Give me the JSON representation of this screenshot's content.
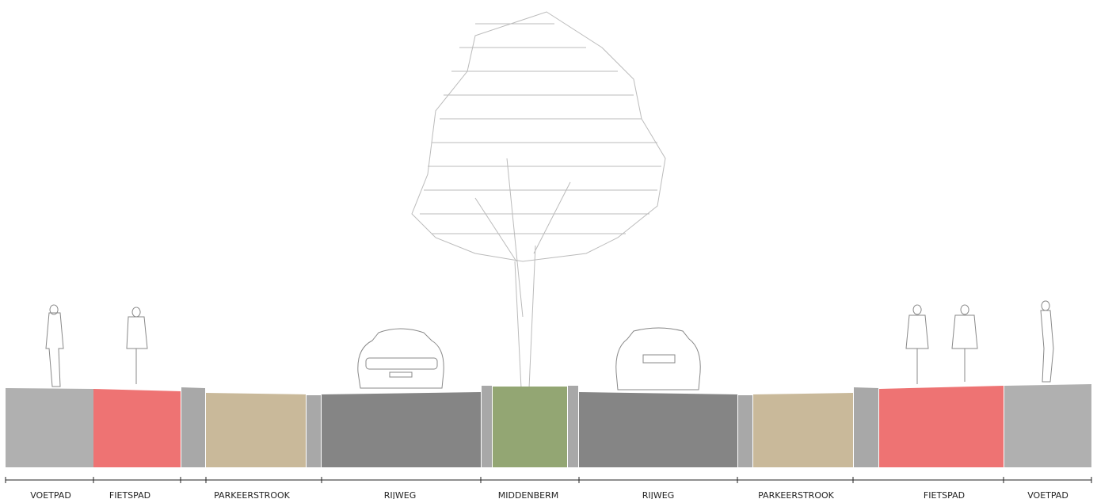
{
  "segments": [
    {
      "label": "VOETPAD"
    },
    {
      "label": "FIETSPAD"
    },
    {
      "label": "PARKEERSTROOK"
    },
    {
      "label": "RIJWEG"
    },
    {
      "label": "MIDDENBERM"
    },
    {
      "label": "RIJWEG"
    },
    {
      "label": "PARKEERSTROOK"
    },
    {
      "label": "FIETSPAD"
    },
    {
      "label": "VOETPAD"
    }
  ]
}
